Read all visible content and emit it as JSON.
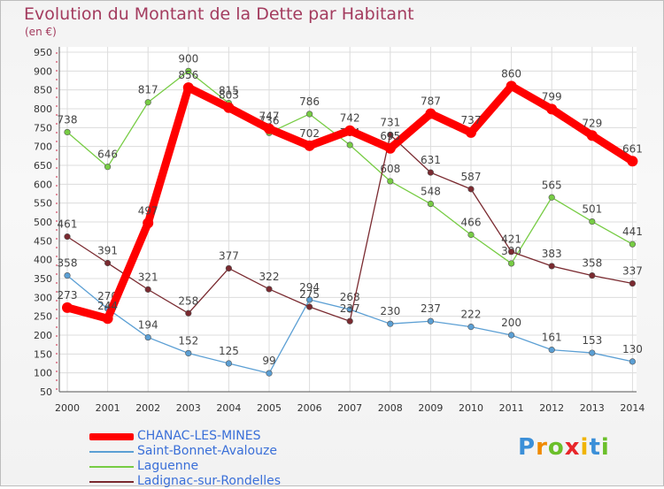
{
  "title": "Evolution du Montant de la Dette par Habitant",
  "unit_label": "(en €)",
  "logo": "Proxiti",
  "chart_data": {
    "type": "line",
    "title": "Evolution du Montant de la Dette par Habitant",
    "ylabel": "(en €)",
    "xlabel": "",
    "ylim": [
      50,
      950
    ],
    "yticks": [
      50,
      100,
      150,
      200,
      250,
      300,
      350,
      400,
      450,
      500,
      550,
      600,
      650,
      700,
      750,
      800,
      850,
      900,
      950
    ],
    "grid": true,
    "legend_position": "bottom-left",
    "x": [
      "2000",
      "2001",
      "2002",
      "2003",
      "2004",
      "2005",
      "2006",
      "2007",
      "2008",
      "2009",
      "2010",
      "2011",
      "2012",
      "2013",
      "2014"
    ],
    "series": [
      {
        "name": "CHANAC-LES-MINES",
        "color": "#ff0000",
        "values": [
          273,
          244,
          497,
          856,
          803,
          747,
          702,
          742,
          695,
          787,
          737,
          860,
          799,
          729,
          661
        ]
      },
      {
        "name": "Saint-Bonnet-Avalouze",
        "color": "#5b9fd4",
        "values": [
          358,
          270,
          194,
          152,
          125,
          99,
          294,
          268,
          230,
          237,
          222,
          200,
          161,
          153,
          130
        ]
      },
      {
        "name": "Laguenne",
        "color": "#77cc44",
        "values": [
          738,
          646,
          817,
          900,
          815,
          736,
          786,
          704,
          608,
          548,
          466,
          390,
          565,
          501,
          441
        ]
      },
      {
        "name": "Ladignac-sur-Rondelles",
        "color": "#7a2a30",
        "values": [
          461,
          391,
          321,
          258,
          377,
          322,
          275,
          237,
          731,
          631,
          587,
          421,
          383,
          358,
          337
        ]
      }
    ]
  }
}
